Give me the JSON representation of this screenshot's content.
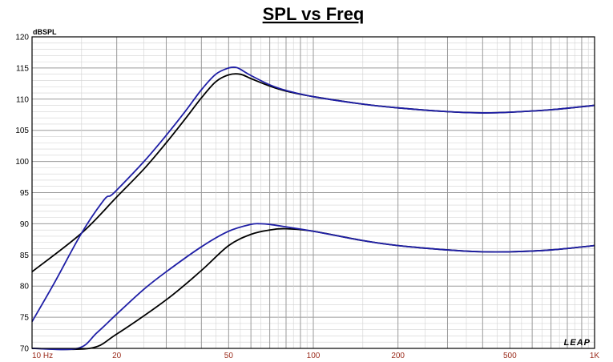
{
  "chart_data": {
    "type": "line",
    "title": "SPL vs Freq",
    "ylabel": "dBSPL",
    "xlabel": "",
    "xscale": "log",
    "xlim": [
      10,
      1000
    ],
    "ylim": [
      70,
      120
    ],
    "grid": true,
    "legend": "none",
    "xticks": [
      {
        "value": 10,
        "label": "10  Hz"
      },
      {
        "value": 20,
        "label": "20"
      },
      {
        "value": 50,
        "label": "50"
      },
      {
        "value": 100,
        "label": "100"
      },
      {
        "value": 200,
        "label": "200"
      },
      {
        "value": 500,
        "label": "500"
      },
      {
        "value": 1000,
        "label": "1K"
      }
    ],
    "yticks": [
      70,
      75,
      80,
      85,
      90,
      95,
      100,
      105,
      110,
      115,
      120
    ],
    "logo": "LEAP",
    "series": [
      {
        "color": "#000000",
        "points": [
          [
            10,
            82.3
          ],
          [
            15,
            88.5
          ],
          [
            20,
            94.3
          ],
          [
            25,
            98.8
          ],
          [
            30,
            103.0
          ],
          [
            35,
            106.8
          ],
          [
            40,
            110.2
          ],
          [
            45,
            112.8
          ],
          [
            50,
            113.9
          ],
          [
            55,
            114.0
          ],
          [
            60,
            113.3
          ],
          [
            70,
            112.1
          ],
          [
            80,
            111.3
          ],
          [
            100,
            110.4
          ],
          [
            150,
            109.2
          ],
          [
            200,
            108.6
          ],
          [
            300,
            108.0
          ],
          [
            400,
            107.8
          ],
          [
            500,
            107.9
          ],
          [
            700,
            108.3
          ],
          [
            1000,
            109.0
          ]
        ]
      },
      {
        "color": "#1f1fa6",
        "points": [
          [
            10,
            74.3
          ],
          [
            12,
            80.5
          ],
          [
            15,
            88.5
          ],
          [
            18,
            93.8
          ],
          [
            19,
            94.5
          ],
          [
            20,
            95.4
          ],
          [
            25,
            100.0
          ],
          [
            30,
            104.2
          ],
          [
            35,
            108.0
          ],
          [
            40,
            111.5
          ],
          [
            45,
            114.0
          ],
          [
            50,
            115.0
          ],
          [
            53,
            115.1
          ],
          [
            55,
            114.8
          ],
          [
            60,
            113.8
          ],
          [
            70,
            112.3
          ],
          [
            80,
            111.4
          ],
          [
            100,
            110.4
          ],
          [
            150,
            109.2
          ],
          [
            200,
            108.6
          ],
          [
            300,
            108.0
          ],
          [
            400,
            107.8
          ],
          [
            500,
            107.9
          ],
          [
            700,
            108.3
          ],
          [
            1000,
            109.0
          ]
        ]
      },
      {
        "color": "#000000",
        "points": [
          [
            10,
            70.0
          ],
          [
            16,
            70.0
          ],
          [
            20,
            72.3
          ],
          [
            30,
            77.8
          ],
          [
            40,
            82.5
          ],
          [
            50,
            86.5
          ],
          [
            60,
            88.3
          ],
          [
            70,
            89.0
          ],
          [
            80,
            89.2
          ],
          [
            100,
            88.8
          ],
          [
            150,
            87.3
          ],
          [
            200,
            86.5
          ],
          [
            300,
            85.8
          ],
          [
            400,
            85.5
          ],
          [
            500,
            85.5
          ],
          [
            700,
            85.8
          ],
          [
            1000,
            86.5
          ]
        ]
      },
      {
        "color": "#1f1fa6",
        "points": [
          [
            10,
            70.0
          ],
          [
            14.5,
            70.0
          ],
          [
            17,
            72.5
          ],
          [
            20,
            75.5
          ],
          [
            25,
            79.5
          ],
          [
            30,
            82.3
          ],
          [
            40,
            86.3
          ],
          [
            50,
            88.8
          ],
          [
            60,
            89.9
          ],
          [
            65,
            90.0
          ],
          [
            70,
            89.9
          ],
          [
            80,
            89.5
          ],
          [
            100,
            88.8
          ],
          [
            150,
            87.3
          ],
          [
            200,
            86.5
          ],
          [
            300,
            85.8
          ],
          [
            400,
            85.5
          ],
          [
            500,
            85.5
          ],
          [
            700,
            85.8
          ],
          [
            1000,
            86.5
          ]
        ]
      }
    ]
  }
}
